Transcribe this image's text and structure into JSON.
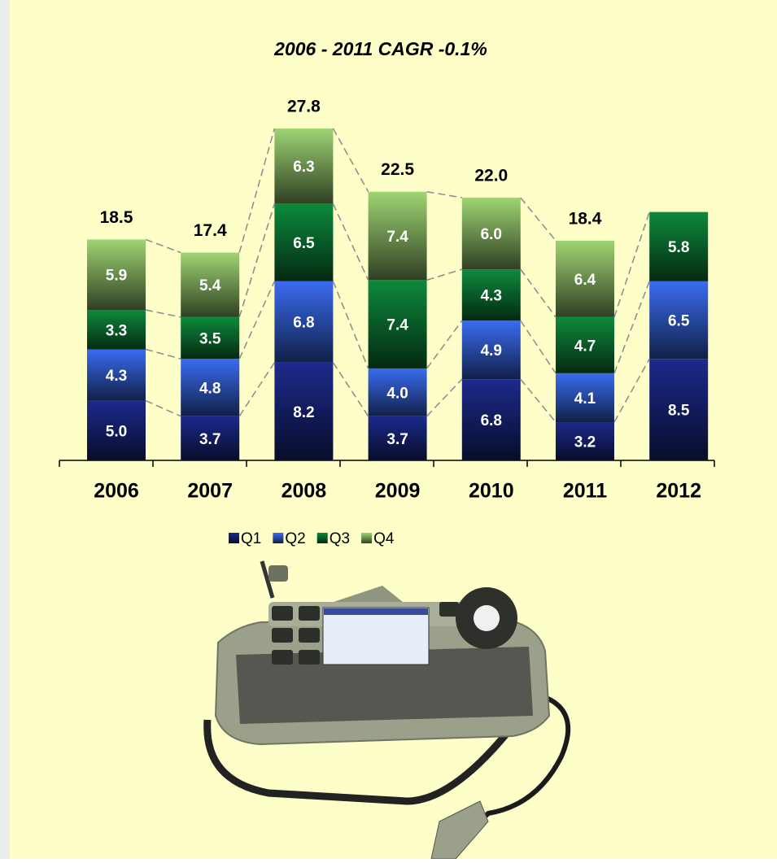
{
  "chart_data": {
    "type": "stacked_bar",
    "title": "2006 - 2011 CAGR -0.1%",
    "categories": [
      "2006",
      "2007",
      "2008",
      "2009",
      "2010",
      "2011",
      "2012"
    ],
    "series": [
      {
        "name": "Q1",
        "color": "#1c2a8c",
        "values": [
          5.0,
          3.7,
          8.2,
          3.7,
          6.8,
          3.2,
          8.5
        ],
        "value_labels": [
          "5.0",
          "3.7",
          "8.2",
          "3.7",
          "6.8",
          "3.2",
          "8.5"
        ]
      },
      {
        "name": "Q2",
        "color": "#3a6cf0",
        "values": [
          4.3,
          4.8,
          6.8,
          4.0,
          4.9,
          4.1,
          6.5
        ],
        "value_labels": [
          "4.3",
          "4.8",
          "6.8",
          "4.0",
          "4.9",
          "4.1",
          "6.5"
        ]
      },
      {
        "name": "Q3",
        "color": "#0d8a3c",
        "values": [
          3.3,
          3.5,
          6.5,
          7.4,
          4.3,
          4.7,
          5.8
        ],
        "value_labels": [
          "3.3",
          "3.5",
          "6.5",
          "7.4",
          "4.3",
          "4.7",
          "5.8"
        ]
      },
      {
        "name": "Q4",
        "color": "#9fd473",
        "values": [
          5.9,
          5.4,
          6.3,
          7.4,
          6.0,
          6.4,
          null
        ],
        "value_labels": [
          "5.9",
          "5.4",
          "6.3",
          "7.4",
          "6.0",
          "6.4",
          null
        ]
      }
    ],
    "totals": [
      18.5,
      17.4,
      27.8,
      22.5,
      22.0,
      18.4,
      null
    ],
    "totals_labels": [
      "18.5",
      "17.4",
      "27.8",
      "22.5",
      "22.0",
      "18.4",
      null
    ]
  }
}
